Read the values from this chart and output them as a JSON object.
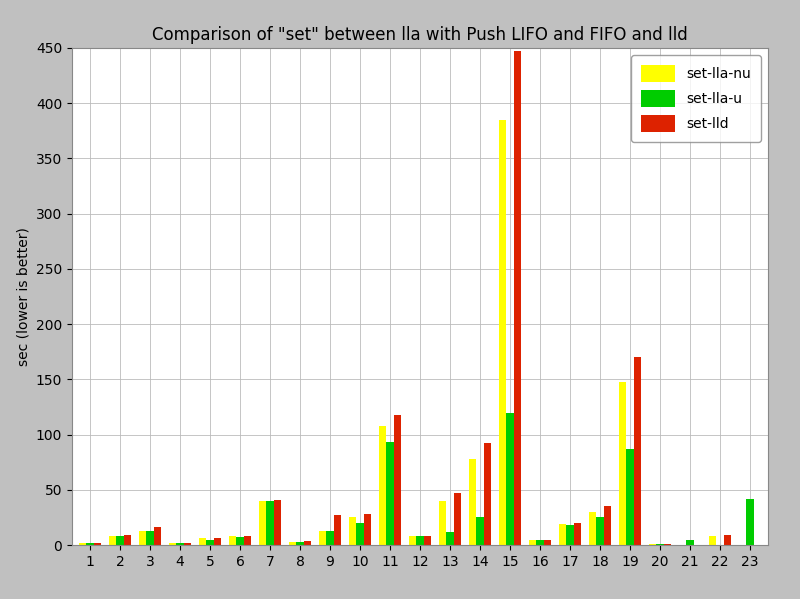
{
  "title": "Comparison of \"set\" between lla with Push LIFO and FIFO and lld",
  "ylabel": "sec (lower is better)",
  "categories": [
    1,
    2,
    3,
    4,
    5,
    6,
    7,
    8,
    9,
    10,
    11,
    12,
    13,
    14,
    15,
    16,
    17,
    18,
    19,
    20,
    21,
    22,
    23
  ],
  "set_lla_nu": [
    2,
    8,
    13,
    2,
    6,
    8,
    40,
    3,
    13,
    25,
    108,
    8,
    40,
    78,
    385,
    5,
    19,
    30,
    148,
    1,
    0,
    8,
    0
  ],
  "set_lla_u": [
    2,
    8,
    13,
    2,
    5,
    7,
    40,
    3,
    13,
    20,
    93,
    8,
    12,
    25,
    120,
    5,
    18,
    25,
    87,
    1,
    5,
    0,
    42
  ],
  "set_lld": [
    2,
    9,
    16,
    2,
    6,
    8,
    41,
    4,
    27,
    28,
    118,
    8,
    47,
    92,
    447,
    5,
    20,
    35,
    170,
    1,
    0,
    9,
    0
  ],
  "ylim": [
    0,
    450
  ],
  "yticks": [
    0,
    50,
    100,
    150,
    200,
    250,
    300,
    350,
    400,
    450
  ],
  "color_nu": "#ffff00",
  "color_u": "#00cc00",
  "color_lld": "#dd2200",
  "legend_labels": [
    "set-lla-nu",
    "set-lla-u",
    "set-lld"
  ],
  "bg_color": "#c0c0c0",
  "plot_bg_color": "#ffffff",
  "title_fontsize": 12,
  "axis_fontsize": 10,
  "tick_fontsize": 10,
  "bar_width": 0.25,
  "xlim_left": 0.4,
  "xlim_right": 23.6
}
